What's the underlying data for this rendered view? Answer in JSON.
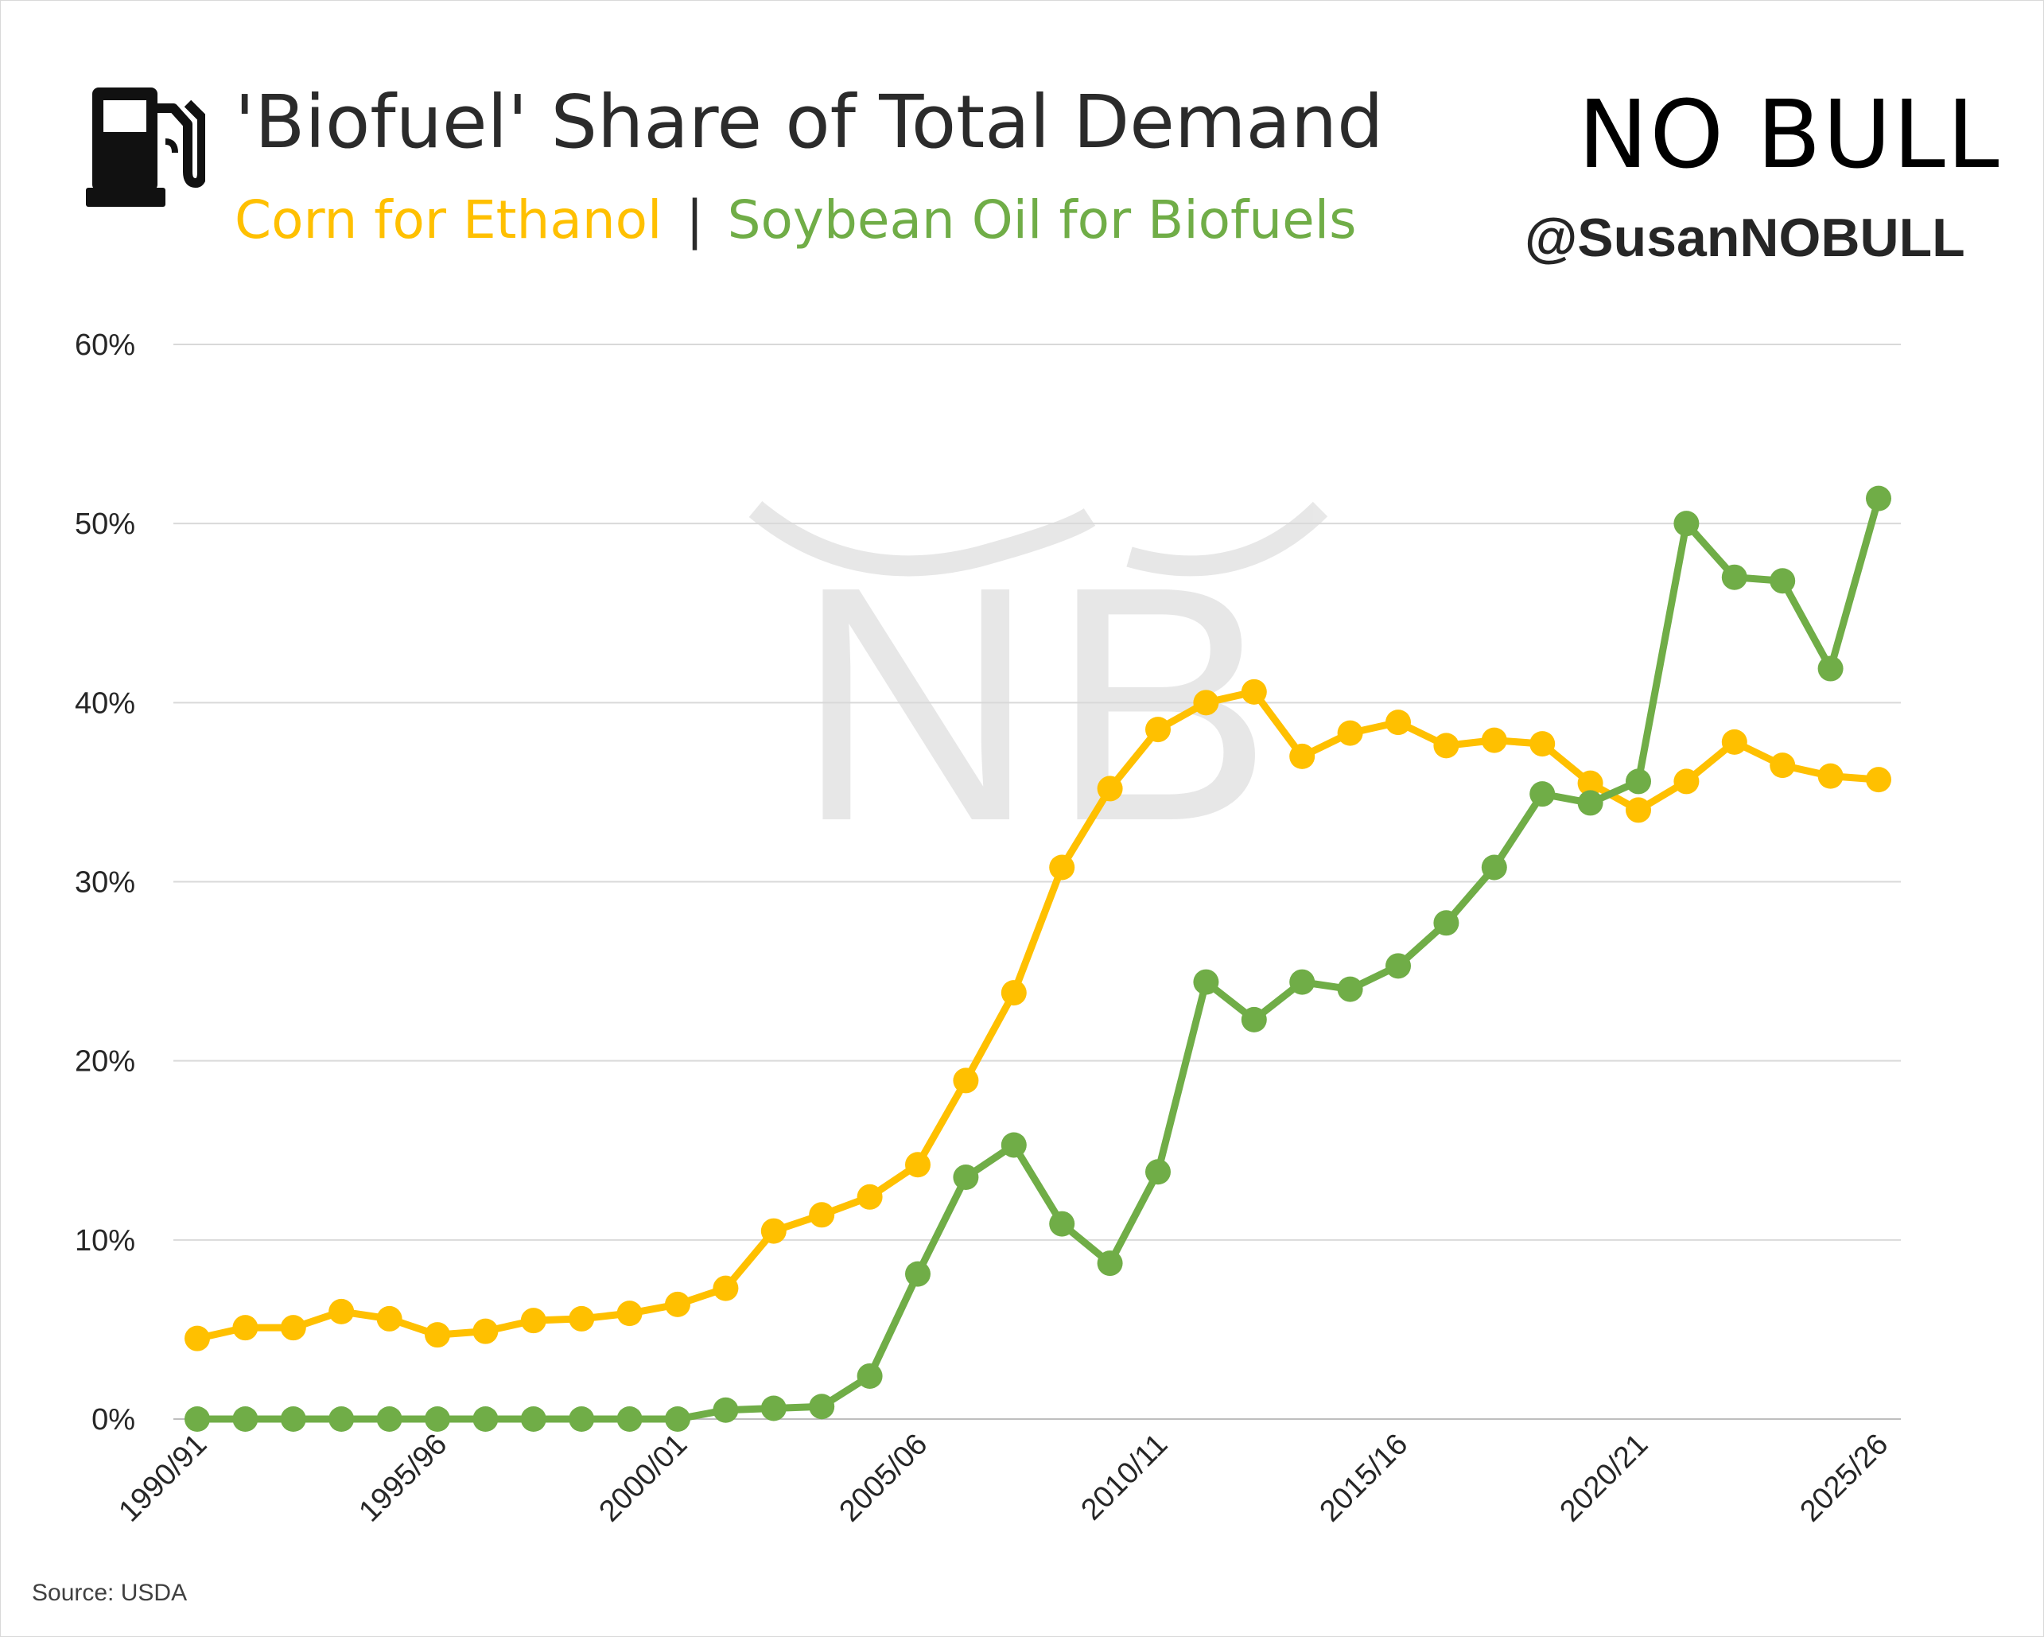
{
  "header": {
    "title": "'Biofuel' Share of Total Demand",
    "subtitle_corn": "Corn for Ethanol",
    "subtitle_sep": "|",
    "subtitle_soy": "Soybean Oil for Biofuels",
    "icon": "fuel-pump-icon"
  },
  "brand": {
    "logo_text": "NO BULL",
    "handle": "@SusanNOBULL",
    "watermark": "NB"
  },
  "footer": {
    "source": "Source: USDA"
  },
  "colors": {
    "corn": "#ffc000",
    "soy": "#70ad47",
    "grid": "#d9d9d9",
    "text": "#262626"
  },
  "chart_data": {
    "type": "line",
    "title": "'Biofuel' Share of Total Demand",
    "xlabel": "",
    "ylabel": "",
    "ylim": [
      0,
      60
    ],
    "yticks": [
      "0%",
      "10%",
      "20%",
      "30%",
      "40%",
      "50%",
      "60%"
    ],
    "ytick_values": [
      0,
      10,
      20,
      30,
      40,
      50,
      60
    ],
    "grid": true,
    "legend": "subtitle",
    "categories": [
      "1990/91",
      "1991/92",
      "1992/93",
      "1993/94",
      "1994/95",
      "1995/96",
      "1996/97",
      "1997/98",
      "1998/99",
      "1999/00",
      "2000/01",
      "2001/02",
      "2002/03",
      "2003/04",
      "2004/05",
      "2005/06",
      "2006/07",
      "2007/08",
      "2008/09",
      "2009/10",
      "2010/11",
      "2011/12",
      "2012/13",
      "2013/14",
      "2014/15",
      "2015/16",
      "2016/17",
      "2017/18",
      "2018/19",
      "2019/20",
      "2020/21",
      "2021/22",
      "2022/23",
      "2023/24",
      "2024/25",
      "2025/26"
    ],
    "xtick_labels": [
      "1990/91",
      "1995/96",
      "2000/01",
      "2005/06",
      "2010/11",
      "2015/16",
      "2020/21",
      "2025/26"
    ],
    "series": [
      {
        "name": "Corn for Ethanol",
        "color": "#ffc000",
        "values": [
          4.5,
          5.1,
          5.1,
          6.0,
          5.6,
          4.7,
          4.9,
          5.5,
          5.6,
          5.9,
          6.4,
          7.3,
          10.5,
          11.4,
          12.4,
          14.2,
          18.9,
          23.8,
          30.8,
          35.2,
          38.5,
          40.0,
          40.6,
          37.0,
          38.3,
          38.9,
          37.6,
          37.9,
          37.7,
          35.5,
          34.0,
          35.6,
          37.8,
          36.5,
          35.9,
          35.7
        ]
      },
      {
        "name": "Soybean Oil for Biofuels",
        "color": "#70ad47",
        "values": [
          0,
          0,
          0,
          0,
          0,
          0,
          0,
          0,
          0,
          0,
          0,
          0.5,
          0.6,
          0.7,
          2.4,
          8.1,
          13.5,
          15.3,
          10.9,
          8.7,
          13.8,
          24.4,
          22.3,
          24.4,
          24.0,
          25.3,
          27.7,
          30.8,
          34.9,
          34.4,
          35.6,
          50.0,
          47.0,
          46.8,
          41.9,
          51.4
        ]
      }
    ]
  }
}
